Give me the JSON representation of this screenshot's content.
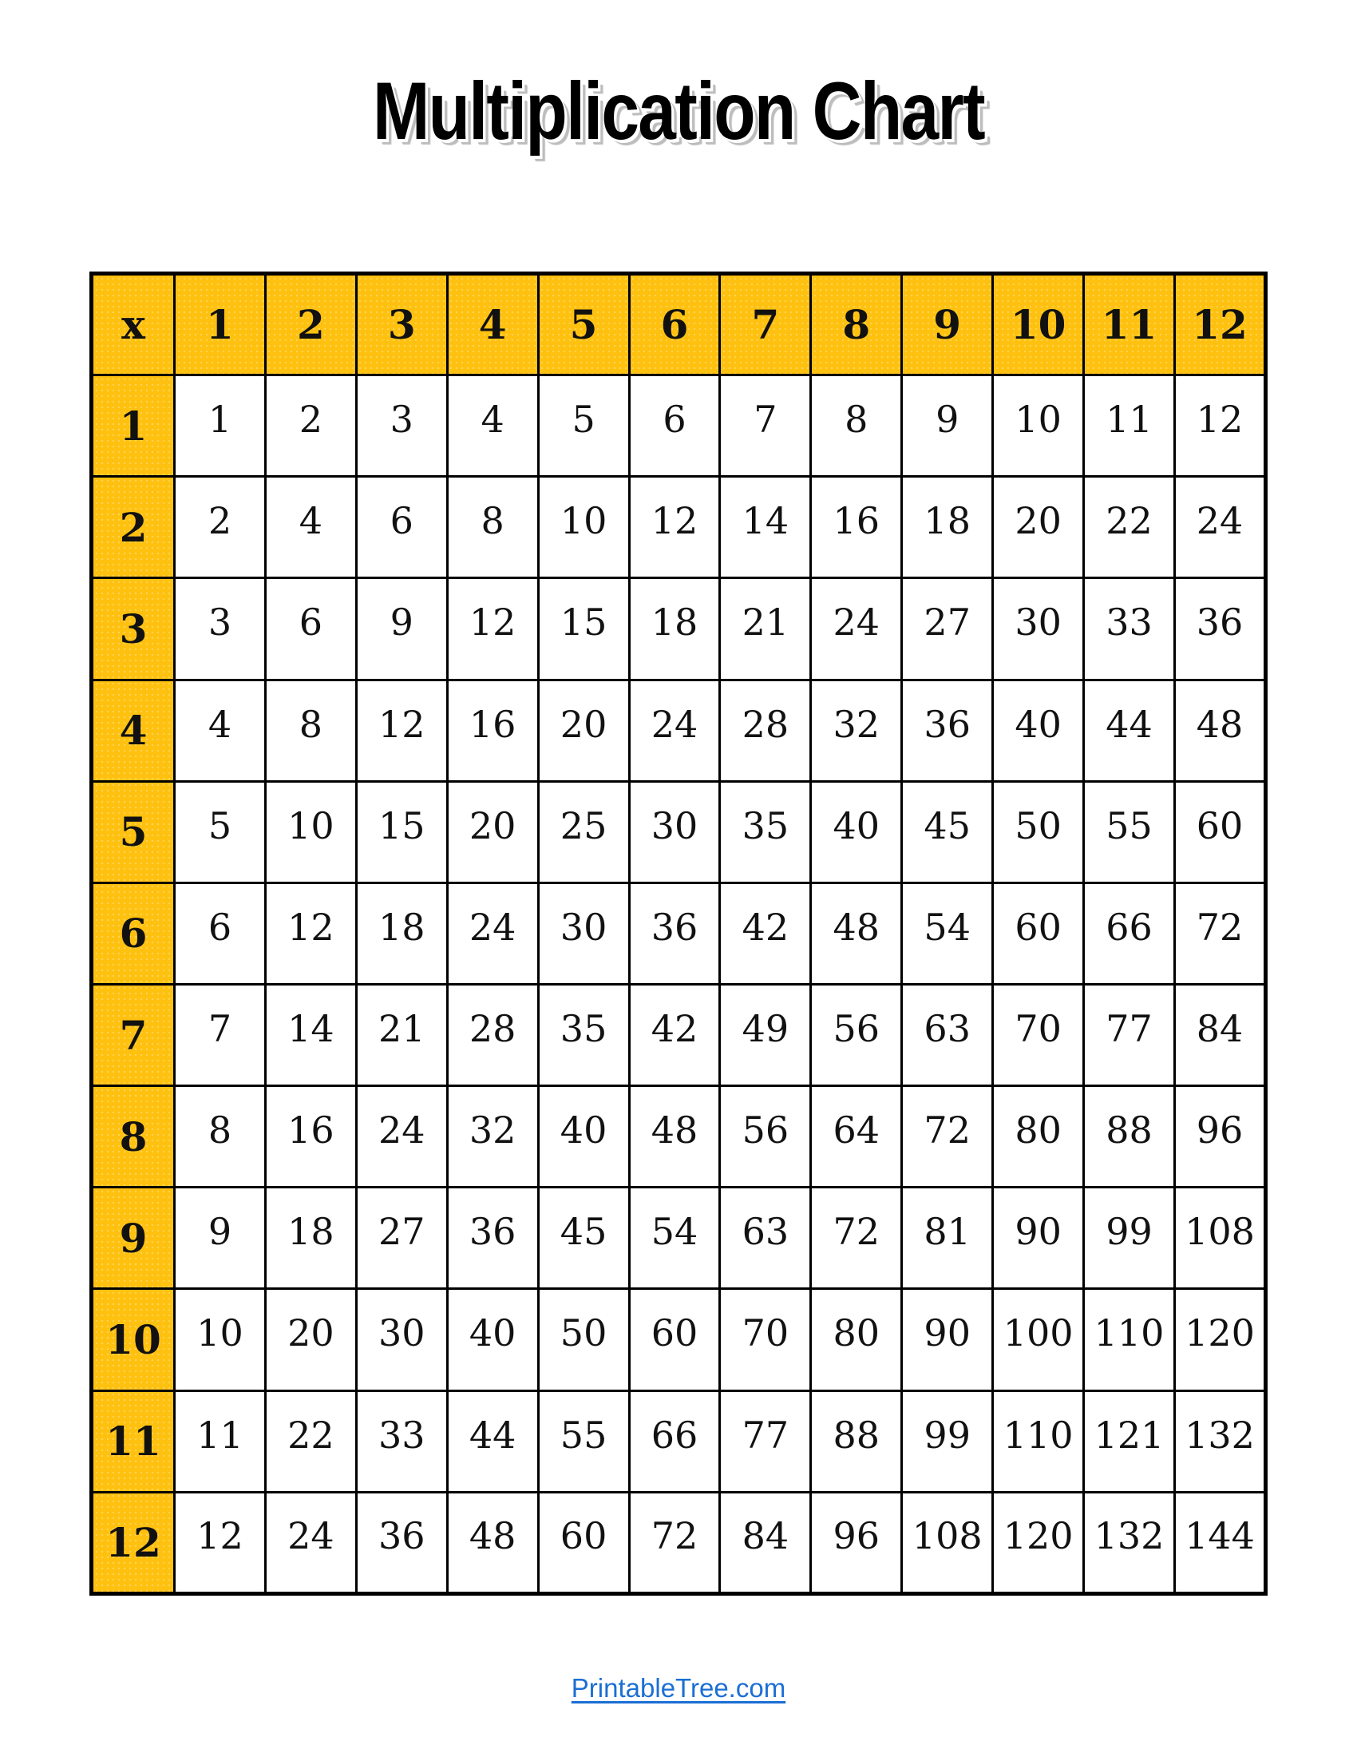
{
  "page": {
    "title": "Multiplication Chart",
    "footer_link": "PrintableTree.com"
  },
  "colors": {
    "header_fill": "#FFC110",
    "grid_border": "#000000",
    "link_blue": "#1B6FD4",
    "title_shadow": "#BDBDBD"
  },
  "chart_data": {
    "type": "table",
    "title": "Multiplication Chart",
    "corner_label": "x",
    "column_headers": [
      "1",
      "2",
      "3",
      "4",
      "5",
      "6",
      "7",
      "8",
      "9",
      "10",
      "11",
      "12"
    ],
    "row_headers": [
      "1",
      "2",
      "3",
      "4",
      "5",
      "6",
      "7",
      "8",
      "9",
      "10",
      "11",
      "12"
    ],
    "rows": [
      [
        1,
        2,
        3,
        4,
        5,
        6,
        7,
        8,
        9,
        10,
        11,
        12
      ],
      [
        2,
        4,
        6,
        8,
        10,
        12,
        14,
        16,
        18,
        20,
        22,
        24
      ],
      [
        3,
        6,
        9,
        12,
        15,
        18,
        21,
        24,
        27,
        30,
        33,
        36
      ],
      [
        4,
        8,
        12,
        16,
        20,
        24,
        28,
        32,
        36,
        40,
        44,
        48
      ],
      [
        5,
        10,
        15,
        20,
        25,
        30,
        35,
        40,
        45,
        50,
        55,
        60
      ],
      [
        6,
        12,
        18,
        24,
        30,
        36,
        42,
        48,
        54,
        60,
        66,
        72
      ],
      [
        7,
        14,
        21,
        28,
        35,
        42,
        49,
        56,
        63,
        70,
        77,
        84
      ],
      [
        8,
        16,
        24,
        32,
        40,
        48,
        56,
        64,
        72,
        80,
        88,
        96
      ],
      [
        9,
        18,
        27,
        36,
        45,
        54,
        63,
        72,
        81,
        90,
        99,
        108
      ],
      [
        10,
        20,
        30,
        40,
        50,
        60,
        70,
        80,
        90,
        100,
        110,
        120
      ],
      [
        11,
        22,
        33,
        44,
        55,
        66,
        77,
        88,
        99,
        110,
        121,
        132
      ],
      [
        12,
        24,
        36,
        48,
        60,
        72,
        84,
        96,
        108,
        120,
        132,
        144
      ]
    ]
  }
}
